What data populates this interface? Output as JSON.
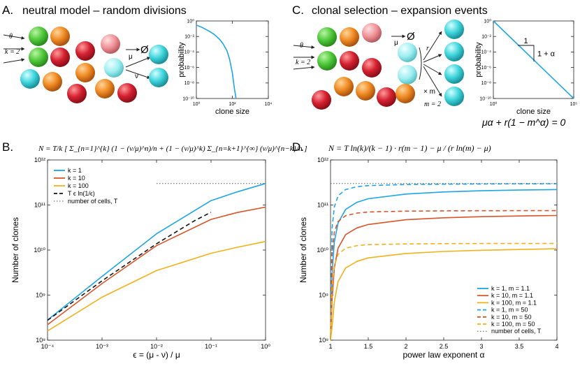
{
  "panels": {
    "a": {
      "letter": "A.",
      "title": "neutral model – random divisions",
      "theta": "θ",
      "k_eq": "k = 2",
      "mu": "μ",
      "nu": "ν",
      "empty": "Ø"
    },
    "b": {
      "letter": "B."
    },
    "c": {
      "letter": "C.",
      "title": "clonal selection – expansion events",
      "theta": "θ",
      "k_eq": "k = 2",
      "mu": "μ",
      "empty": "Ø",
      "r": "r",
      "times_m": "× m",
      "m_eq": "m = 2"
    },
    "d": {
      "letter": "D."
    }
  },
  "equations": {
    "b": "N = T/k [ Σ_{n=1}^{k} (1 − (ν/μ)^n)/n + (1 − (ν/μ)^k) Σ_{n=k+1}^{∞} (ν/μ)^{n−k}/n ]",
    "c": "μα + r(1 − m^α) = 0",
    "d": "N = T ln(k)/(k − 1) · r(m − 1) − μ / (r ln(m) − μ)"
  },
  "colors": {
    "blue": "#1ea5e4",
    "orange": "#d8552a",
    "yellow": "#f0b21a",
    "green": "#4fc83a",
    "red": "#d42030",
    "amber": "#ef8a22",
    "cyan": "#3fd5dc",
    "pink": "#ee8f95"
  },
  "chart_data": [
    {
      "id": "a-inset",
      "type": "line",
      "title": "",
      "xlabel": "clone size",
      "ylabel": "probability",
      "xscale": "log",
      "yscale": "log",
      "xlim": [
        1,
        10000
      ],
      "ylim": [
        1e-10,
        1
      ],
      "xticks": [
        1,
        100,
        10000
      ],
      "xtick_labels": [
        "10⁰",
        "10²",
        "10⁴"
      ],
      "yticks": [
        1,
        0.01,
        0.0001,
        1e-06,
        1e-08,
        1e-10
      ],
      "ytick_labels": [
        "10⁰",
        "10⁻²",
        "10⁻⁴",
        "10⁻⁶",
        "10⁻⁸",
        "10⁻¹⁰"
      ],
      "series": [
        {
          "name": "distribution",
          "color": "#1ea5e4",
          "x": [
            1,
            2,
            5,
            10,
            20,
            30,
            50,
            70,
            100,
            130,
            160
          ],
          "y": [
            0.3,
            0.15,
            0.05,
            0.018,
            0.004,
            0.0012,
            0.00015,
            1.2e-05,
            2e-07,
            2e-09,
            1e-10
          ]
        }
      ]
    },
    {
      "id": "c-inset",
      "type": "line",
      "title": "",
      "xlabel": "clone size",
      "ylabel": "probability",
      "xscale": "log",
      "yscale": "log",
      "xlim": [
        1,
        100000
      ],
      "ylim": [
        1e-10,
        1
      ],
      "xticks": [
        1,
        100000
      ],
      "xtick_labels": [
        "10⁰",
        "10⁵"
      ],
      "yticks": [
        1,
        0.01,
        0.0001,
        1e-06,
        1e-08,
        1e-10
      ],
      "ytick_labels": [
        "10⁰",
        "10⁻²",
        "10⁻⁴",
        "10⁻⁶",
        "10⁻⁸",
        "10⁻¹⁰"
      ],
      "annotations": {
        "run": "1",
        "rise": "1 + α"
      },
      "series": [
        {
          "name": "power law",
          "color": "#1ea5e4",
          "x": [
            1,
            100000
          ],
          "y": [
            1,
            1e-10
          ]
        }
      ]
    },
    {
      "id": "b-main",
      "type": "line",
      "title": "",
      "xlabel": "ϵ = (μ - ν) / μ",
      "ylabel": "Number of clones",
      "xscale": "log",
      "yscale": "log",
      "xlim": [
        0.0001,
        1
      ],
      "ylim": [
        100000000.0,
        1000000000000.0
      ],
      "xticks": [
        0.0001,
        0.001,
        0.01,
        0.1,
        1
      ],
      "xtick_labels": [
        "10⁻⁴",
        "10⁻³",
        "10⁻²",
        "10⁻¹",
        "10⁰"
      ],
      "yticks": [
        100000000.0,
        1000000000.0,
        10000000000.0,
        100000000000.0,
        1000000000000.0
      ],
      "ytick_labels": [
        "10⁸",
        "10⁹",
        "10¹⁰",
        "10¹¹",
        "10¹²"
      ],
      "legend_position": "top-left",
      "series": [
        {
          "name": "k = 1",
          "color": "#1ea5e4",
          "style": "solid",
          "x": [
            0.0001,
            0.001,
            0.01,
            0.1,
            0.3,
            1
          ],
          "y": [
            280000000.0,
            2600000000.0,
            23000000000.0,
            125000000000.0,
            195000000000.0,
            300000000000.0
          ]
        },
        {
          "name": "k = 10",
          "color": "#d8552a",
          "style": "solid",
          "x": [
            0.0001,
            0.001,
            0.01,
            0.1,
            0.3,
            1
          ],
          "y": [
            220000000.0,
            1800000000.0,
            12500000000.0,
            48000000000.0,
            68000000000.0,
            90000000000.0
          ]
        },
        {
          "name": "k = 100",
          "color": "#f0b21a",
          "style": "solid",
          "x": [
            0.0001,
            0.001,
            0.01,
            0.1,
            0.3,
            1
          ],
          "y": [
            160000000.0,
            900000000.0,
            3500000000.0,
            8500000000.0,
            11500000000.0,
            15500000000.0
          ]
        },
        {
          "name": "T ϵ ln(1/ϵ)",
          "color": "#111111",
          "style": "dashed",
          "x": [
            0.0001,
            0.001,
            0.01,
            0.05,
            0.1
          ],
          "y": [
            276000000.0,
            2070000000.0,
            13800000000.0,
            45000000000.0,
            69000000000.0
          ]
        },
        {
          "name": "number of cells, T",
          "color": "#555555",
          "style": "dotted",
          "x": [
            0.01,
            1
          ],
          "y": [
            300000000000.0,
            300000000000.0
          ]
        }
      ]
    },
    {
      "id": "d-main",
      "type": "line",
      "title": "",
      "xlabel": "power law exponent α",
      "ylabel": "Number of clones",
      "xscale": "linear",
      "yscale": "log",
      "xlim": [
        1,
        4
      ],
      "ylim": [
        100000000.0,
        1000000000000.0
      ],
      "xticks": [
        1,
        1.5,
        2,
        2.5,
        3,
        3.5,
        4
      ],
      "xtick_labels": [
        "1",
        "1.5",
        "2",
        "2.5",
        "3",
        "3.5",
        "4"
      ],
      "yticks": [
        100000000.0,
        1000000000.0,
        10000000000.0,
        100000000000.0,
        1000000000000.0
      ],
      "ytick_labels": [
        "10⁸",
        "10⁹",
        "10¹⁰",
        "10¹¹",
        "10¹²"
      ],
      "legend_position": "bottom-right",
      "series": [
        {
          "name": "k = 1, m = 1.1",
          "color": "#1ea5e4",
          "style": "solid",
          "x": [
            1.0,
            1.02,
            1.05,
            1.1,
            1.2,
            1.35,
            1.5,
            2,
            2.5,
            3,
            3.5,
            4
          ],
          "y": [
            100000000.0,
            3000000000.0,
            15000000000.0,
            40000000000.0,
            80000000000.0,
            115000000000.0,
            138000000000.0,
            175000000000.0,
            195000000000.0,
            207000000000.0,
            215000000000.0,
            220000000000.0
          ]
        },
        {
          "name": "k = 10, m = 1.1",
          "color": "#d8552a",
          "style": "solid",
          "x": [
            1.0,
            1.02,
            1.05,
            1.1,
            1.2,
            1.35,
            1.5,
            2,
            2.5,
            3,
            3.5,
            4
          ],
          "y": [
            100000000.0,
            800000000.0,
            4000000000.0,
            11000000000.0,
            22000000000.0,
            31000000000.0,
            37000000000.0,
            47000000000.0,
            52000000000.0,
            55000000000.0,
            57000000000.0,
            58500000000.0
          ]
        },
        {
          "name": "k = 100, m = 1.1",
          "color": "#f0b21a",
          "style": "solid",
          "x": [
            1.0,
            1.02,
            1.05,
            1.1,
            1.2,
            1.35,
            1.5,
            2,
            2.5,
            3,
            3.5,
            4
          ],
          "y": [
            100000000.0,
            200000000.0,
            700000000.0,
            2000000000.0,
            4000000000.0,
            5600000000.0,
            6700000000.0,
            8400000000.0,
            9300000000.0,
            9900000000.0,
            10300000000.0,
            10700000000.0
          ]
        },
        {
          "name": "k = 1, m = 50",
          "color": "#1ea5e4",
          "style": "dashed",
          "x": [
            1.0,
            1.02,
            1.05,
            1.1,
            1.2,
            1.35,
            1.5,
            2,
            2.5,
            3,
            3.5,
            4
          ],
          "y": [
            100000000.0,
            30000000000.0,
            90000000000.0,
            160000000000.0,
            220000000000.0,
            255000000000.0,
            270000000000.0,
            285000000000.0,
            290000000000.0,
            293000000000.0,
            295000000000.0,
            296000000000.0
          ]
        },
        {
          "name": "k = 10, m = 50",
          "color": "#d8552a",
          "style": "dashed",
          "x": [
            1.0,
            1.02,
            1.05,
            1.1,
            1.2,
            1.35,
            1.5,
            2,
            2.5,
            3,
            3.5,
            4
          ],
          "y": [
            100000000.0,
            8000000000.0,
            25000000000.0,
            43000000000.0,
            58000000000.0,
            66000000000.0,
            70000000000.0,
            73000000000.0,
            74000000000.0,
            74500000000.0,
            75000000000.0,
            75000000000.0
          ]
        },
        {
          "name": "k = 100, m = 50",
          "color": "#f0b21a",
          "style": "dashed",
          "x": [
            1.0,
            1.02,
            1.05,
            1.1,
            1.2,
            1.35,
            1.5,
            2,
            2.5,
            3,
            3.5,
            4
          ],
          "y": [
            100000000.0,
            1500000000.0,
            4500000000.0,
            8000000000.0,
            11000000000.0,
            12500000000.0,
            13200000000.0,
            13700000000.0,
            13900000000.0,
            14000000000.0,
            14000000000.0,
            14000000000.0
          ]
        },
        {
          "name": "number of cells, T",
          "color": "#555555",
          "style": "dotted",
          "x": [
            1,
            4
          ],
          "y": [
            300000000000.0,
            300000000000.0
          ]
        }
      ]
    }
  ]
}
